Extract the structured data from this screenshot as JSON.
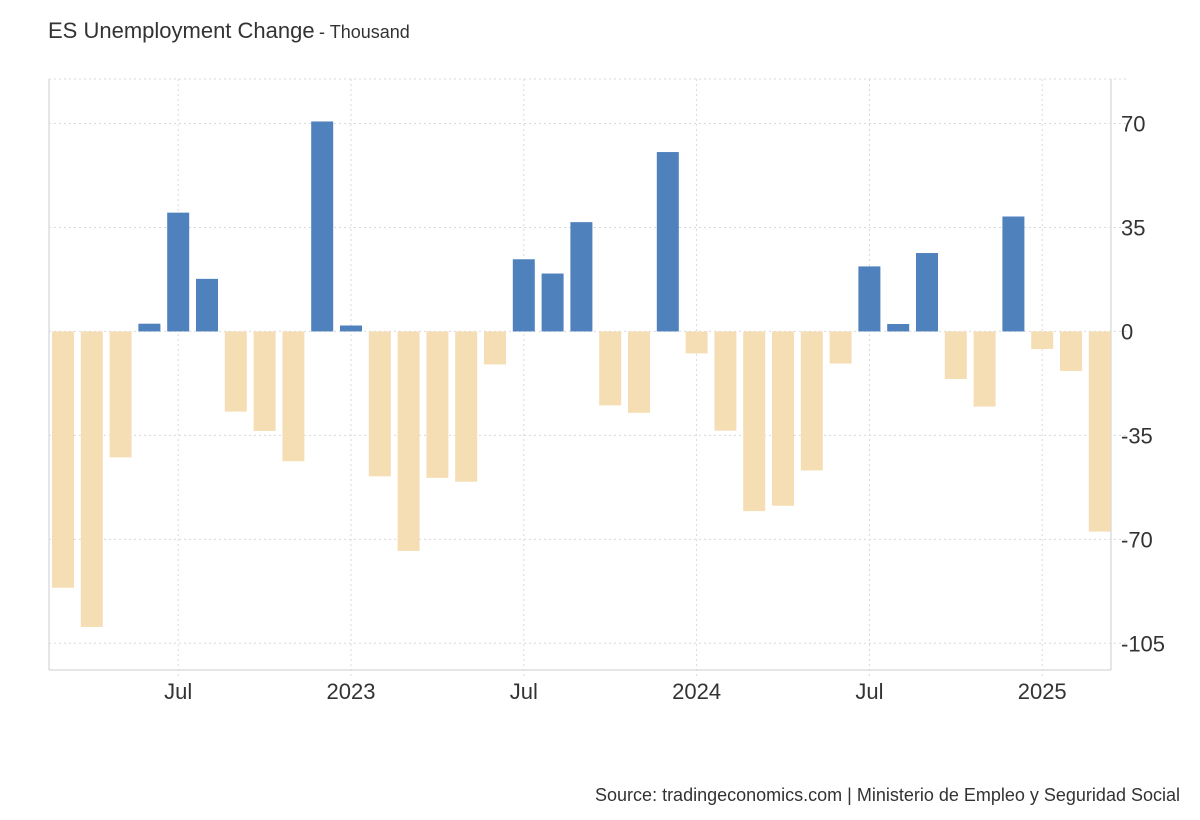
{
  "header": {
    "title": "ES Unemployment Change",
    "subtitle": "- Thousand"
  },
  "source": "Source: tradingeconomics.com | Ministerio de Empleo y Seguridad Social",
  "colors": {
    "positive": "#4f81bd",
    "negative": "#f5deb3",
    "grid": "#d9d9d9",
    "axis": "#cccccc"
  },
  "chart_data": {
    "type": "bar",
    "title": "ES Unemployment Change",
    "ylabel": "Thousand",
    "xlabel": "",
    "ylim": [
      -114,
      85
    ],
    "y_ticks": [
      70,
      35,
      0,
      -35,
      -70,
      -105
    ],
    "y_axis_side": "right",
    "grid": true,
    "legend": "none",
    "x_ticks": [
      {
        "label": "Jul",
        "category": "2022-07"
      },
      {
        "label": "2023",
        "category": "2023-01"
      },
      {
        "label": "Jul",
        "category": "2023-07"
      },
      {
        "label": "2024",
        "category": "2024-01"
      },
      {
        "label": "Jul",
        "category": "2024-07"
      },
      {
        "label": "2025",
        "category": "2025-01"
      }
    ],
    "categories": [
      "2022-03",
      "2022-04",
      "2022-05",
      "2022-06",
      "2022-07",
      "2022-08",
      "2022-09",
      "2022-10",
      "2022-11",
      "2022-12",
      "2023-01",
      "2023-02",
      "2023-03",
      "2023-04",
      "2023-05",
      "2023-06",
      "2023-07",
      "2023-08",
      "2023-09",
      "2023-10",
      "2023-11",
      "2023-12",
      "2024-01",
      "2024-02",
      "2024-03",
      "2024-04",
      "2024-05",
      "2024-06",
      "2024-07",
      "2024-08",
      "2024-09",
      "2024-10",
      "2024-11",
      "2024-12",
      "2025-01",
      "2025-02",
      "2025-03",
      "2025-04"
    ],
    "values": [
      -86.3,
      -99.5,
      -42.4,
      2.6,
      40.0,
      17.7,
      -27.0,
      -33.5,
      -43.7,
      70.7,
      2.0,
      -48.8,
      -73.9,
      -49.3,
      -50.6,
      -11.1,
      24.3,
      19.5,
      36.8,
      -24.9,
      -27.4,
      60.4,
      -7.4,
      -33.4,
      -60.5,
      -58.7,
      -46.8,
      -10.8,
      21.9,
      2.5,
      26.4,
      -16.0,
      -25.3,
      38.7,
      -5.9,
      -13.3,
      -67.4,
      0
    ]
  }
}
